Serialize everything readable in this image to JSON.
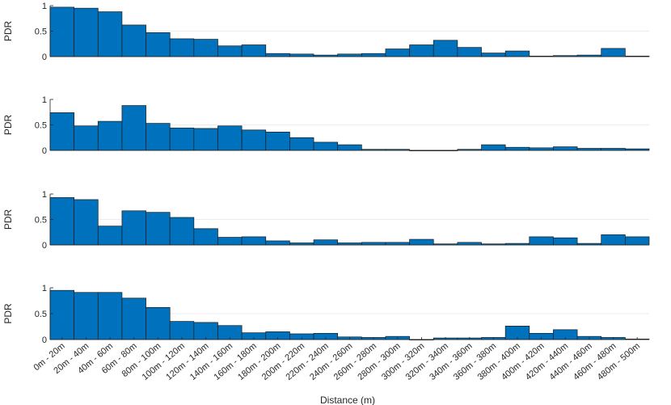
{
  "chart_data": {
    "type": "bar",
    "layout": "4 stacked subplots sharing x categories",
    "xlabel": "Distance (m)",
    "ylabel": "PDR",
    "ylim": [
      0,
      1
    ],
    "yticks": [
      "0",
      "0.5",
      "1"
    ],
    "grid": "horizontal at 0.5",
    "bar_color": "#0072BD",
    "categories": [
      "0m - 20m",
      "20m - 40m",
      "40m - 60m",
      "60m - 80m",
      "80m - 100m",
      "100m - 120m",
      "120m - 140m",
      "140m - 160m",
      "160m - 180m",
      "180m - 200m",
      "200m - 220m",
      "220m - 240m",
      "240m - 260m",
      "260m - 280m",
      "280m - 300m",
      "300m - 320m",
      "320m - 340m",
      "340m - 360m",
      "360m - 380m",
      "380m - 400m",
      "400m - 420m",
      "420m - 440m",
      "440m - 460m",
      "460m - 480m",
      "480m - 500m"
    ],
    "panels": [
      {
        "values": [
          0.97,
          0.95,
          0.88,
          0.62,
          0.47,
          0.35,
          0.34,
          0.21,
          0.23,
          0.06,
          0.05,
          0.03,
          0.05,
          0.06,
          0.15,
          0.23,
          0.32,
          0.18,
          0.07,
          0.11,
          0.01,
          0.02,
          0.03,
          0.16,
          0.01
        ]
      },
      {
        "values": [
          0.74,
          0.48,
          0.57,
          0.88,
          0.53,
          0.44,
          0.43,
          0.48,
          0.4,
          0.36,
          0.25,
          0.16,
          0.11,
          0.02,
          0.02,
          0.0,
          0.0,
          0.02,
          0.11,
          0.06,
          0.05,
          0.07,
          0.04,
          0.04,
          0.03
        ]
      },
      {
        "values": [
          0.93,
          0.89,
          0.37,
          0.67,
          0.64,
          0.54,
          0.32,
          0.15,
          0.16,
          0.08,
          0.04,
          0.1,
          0.04,
          0.05,
          0.05,
          0.11,
          0.02,
          0.05,
          0.02,
          0.03,
          0.16,
          0.14,
          0.03,
          0.2,
          0.16
        ]
      },
      {
        "values": [
          0.95,
          0.91,
          0.91,
          0.8,
          0.62,
          0.35,
          0.33,
          0.27,
          0.13,
          0.15,
          0.11,
          0.12,
          0.05,
          0.04,
          0.06,
          0.0,
          0.03,
          0.03,
          0.04,
          0.26,
          0.12,
          0.19,
          0.06,
          0.04,
          0.01
        ]
      }
    ]
  }
}
